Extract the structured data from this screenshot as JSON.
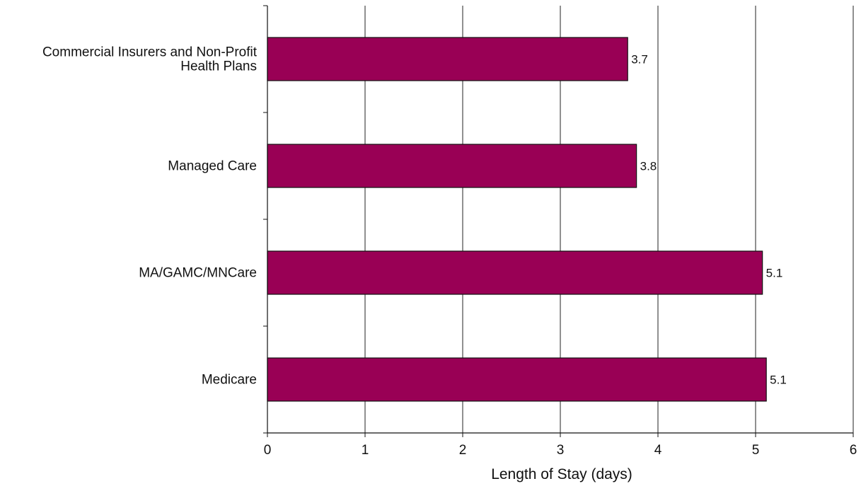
{
  "chart_data": {
    "type": "bar",
    "orientation": "horizontal",
    "title": "",
    "xlabel": "Length of Stay (days)",
    "ylabel": "",
    "xlim": [
      0,
      6
    ],
    "xticks": [
      "0",
      "1",
      "2",
      "3",
      "4",
      "5",
      "6"
    ],
    "grid": "vertical",
    "categories": [
      [
        "Commercial Insurers and Non-Profit",
        "Health Plans"
      ],
      [
        "Managed Care"
      ],
      [
        "MA/GAMC/MNCare"
      ],
      [
        "Medicare"
      ]
    ],
    "values": [
      3.69,
      3.78,
      5.07,
      5.11
    ],
    "data_labels": [
      "3.7",
      "3.8",
      "5.1",
      "5.1"
    ],
    "bar_color": "#990055"
  }
}
